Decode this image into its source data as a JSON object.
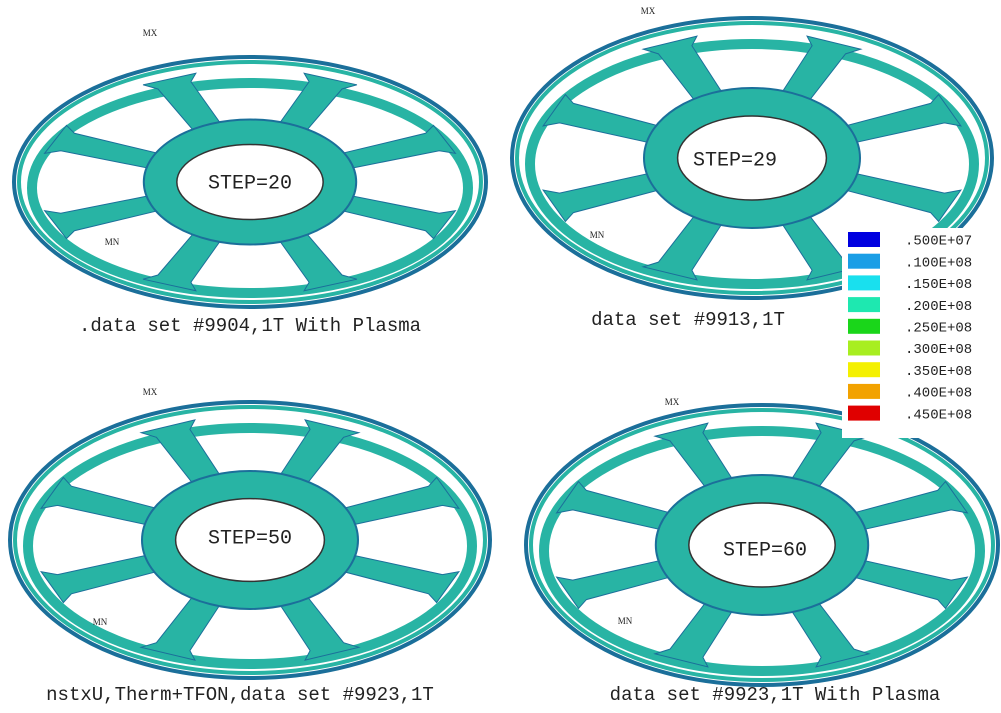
{
  "panels": [
    {
      "step": "STEP=20",
      "caption": ".data set #9904,1T With Plasma",
      "max_label": "MX",
      "min_label": "MN"
    },
    {
      "step": "STEP=29",
      "caption": "data set #9913,1T",
      "max_label": "MX",
      "min_label": "MN"
    },
    {
      "step": "STEP=50",
      "caption": "nstxU,Therm+TFON,data set #9923,1T",
      "max_label": "MX",
      "min_label": "MN"
    },
    {
      "step": "STEP=60",
      "caption": "data set #9923,1T With Plasma",
      "max_label": "MX",
      "min_label": "MN"
    }
  ],
  "legend": [
    {
      "label": ".500E+07",
      "color": "#0000e0"
    },
    {
      "label": ".100E+08",
      "color": "#1a9ee6"
    },
    {
      "label": ".150E+08",
      "color": "#19e0ee"
    },
    {
      "label": ".200E+08",
      "color": "#1ee8b0"
    },
    {
      "label": ".250E+08",
      "color": "#1ad61a"
    },
    {
      "label": ".300E+08",
      "color": "#a8ee20"
    },
    {
      "label": ".350E+08",
      "color": "#f4f000"
    },
    {
      "label": ".400E+08",
      "color": "#f2a200"
    },
    {
      "label": ".450E+08",
      "color": "#e00000"
    }
  ]
}
